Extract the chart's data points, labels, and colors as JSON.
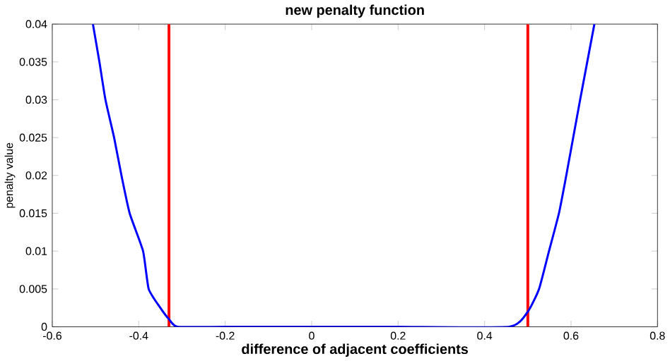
{
  "chart_data": {
    "type": "line",
    "title": "new penalty function",
    "xlabel": "difference of adjacent coefficients",
    "ylabel": "penalty value",
    "xlim": [
      -0.6,
      0.8
    ],
    "xticks": [
      -0.6,
      -0.4,
      -0.2,
      0,
      0.2,
      0.4,
      0.6,
      0.8
    ],
    "ylim": [
      0,
      0.04
    ],
    "yticks": [
      0,
      0.005,
      0.01,
      0.015,
      0.02,
      0.025,
      0.03,
      0.035,
      0.04
    ],
    "series": [
      {
        "color": "#0000ff",
        "x": [
          -0.506,
          -0.491,
          -0.477,
          -0.457,
          -0.44,
          -0.421,
          -0.39,
          -0.377,
          -0.35,
          -0.33,
          -0.31,
          -0.2,
          0,
          0.2,
          0.457,
          0.5,
          0.526,
          0.549,
          0.572,
          0.589,
          0.621,
          0.654
        ],
        "values": [
          0.04,
          0.035,
          0.03,
          0.025,
          0.02,
          0.015,
          0.01,
          0.005,
          0.0025,
          0.001,
          0,
          0,
          0,
          0,
          0,
          0.002,
          0.005,
          0.01,
          0.015,
          0.02,
          0.03,
          0.04
        ]
      }
    ],
    "ref_lines": [
      {
        "axis": "x",
        "value": -0.33,
        "color": "#ff0000"
      },
      {
        "axis": "x",
        "value": 0.5,
        "color": "#ff0000"
      }
    ],
    "grid": false,
    "marker": "none",
    "line_style": "solid"
  }
}
